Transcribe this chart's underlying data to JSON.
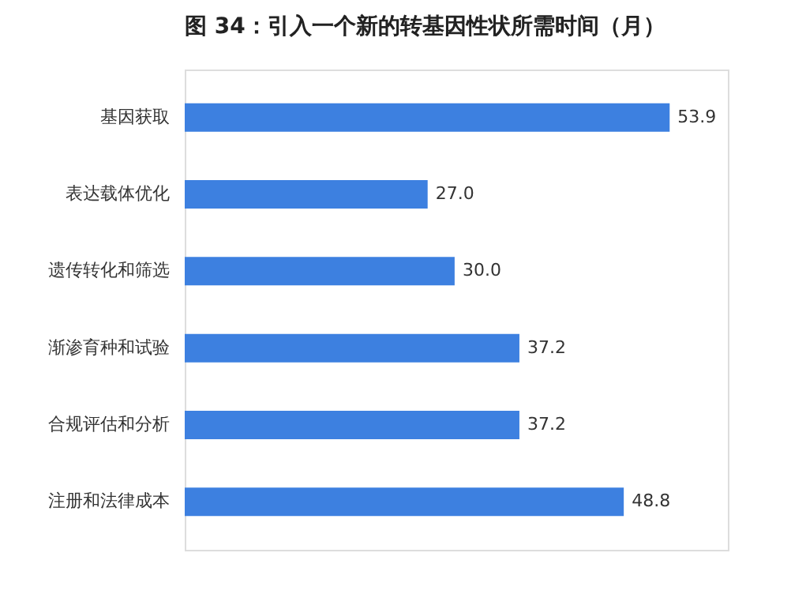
{
  "chart_data": {
    "type": "bar",
    "orientation": "horizontal",
    "title": "图 34：引入一个新的转基因性状所需时间（月）",
    "categories": [
      "基因获取",
      "表达载体优化",
      "遗传转化和筛选",
      "渐渗育种和试验",
      "合规评估和分析",
      "注册和法律成本"
    ],
    "values": [
      53.9,
      27.0,
      30.0,
      37.2,
      37.2,
      48.8
    ],
    "value_labels": [
      "53.9",
      "27.0",
      "30.0",
      "37.2",
      "37.2",
      "48.8"
    ],
    "color": "#3d80e0",
    "grid": false,
    "tick_labels": false
  }
}
